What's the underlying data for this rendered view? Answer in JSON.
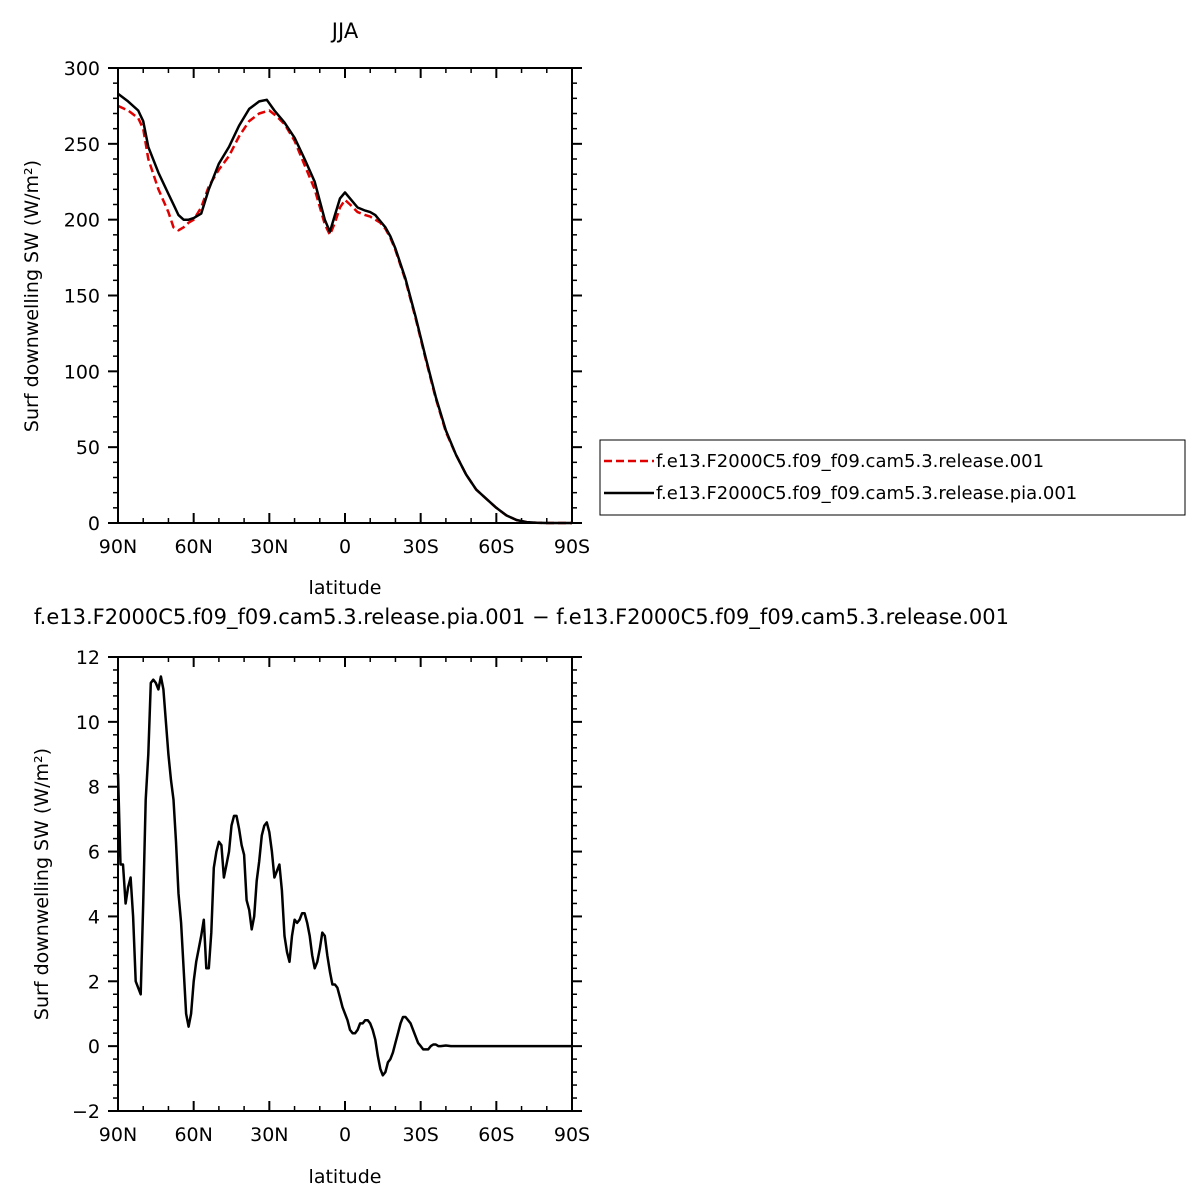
{
  "chart_data": [
    {
      "type": "line",
      "title": "JJA",
      "xlabel": "latitude",
      "ylabel": "Surf downwelling SW (W/m²)",
      "xlim": [
        90,
        -90
      ],
      "ylim": [
        0,
        300
      ],
      "xticks": [
        90,
        60,
        30,
        0,
        -30,
        -60,
        -90
      ],
      "xtick_labels": [
        "90N",
        "60N",
        "30N",
        "0",
        "30S",
        "60S",
        "90S"
      ],
      "yticks": [
        0,
        50,
        100,
        150,
        200,
        250,
        300
      ],
      "ytick_labels": [
        "0",
        "50",
        "100",
        "150",
        "200",
        "250",
        "300"
      ],
      "legend_position": "right",
      "series": [
        {
          "name": "f.e13.F2000C5.f09_f09.cam5.3.release.001",
          "color": "#e00000",
          "dash": "dashed",
          "x": [
            90,
            86,
            82,
            80,
            78,
            74,
            70,
            68,
            66,
            64,
            62,
            60,
            57,
            54,
            50,
            46,
            42,
            38,
            34,
            30,
            27,
            24,
            20,
            16,
            12,
            8,
            6,
            4,
            2,
            0,
            -2,
            -5,
            -8,
            -10,
            -12,
            -14,
            -16,
            -18,
            -20,
            -24,
            -28,
            -32,
            -36,
            -40,
            -44,
            -48,
            -52,
            -56,
            -60,
            -64,
            -68,
            -72,
            -76,
            -80,
            -84,
            -88,
            -90
          ],
          "y": [
            275,
            272,
            267,
            260,
            240,
            220,
            205,
            195,
            193,
            195,
            198,
            200,
            208,
            222,
            233,
            242,
            255,
            265,
            270,
            272,
            268,
            263,
            252,
            236,
            220,
            197,
            190,
            198,
            208,
            213,
            210,
            205,
            203,
            202,
            200,
            198,
            194,
            188,
            180,
            160,
            135,
            108,
            82,
            60,
            45,
            32,
            22,
            16,
            10,
            5,
            2,
            0.6,
            0.1,
            0,
            0,
            0,
            0
          ]
        },
        {
          "name": "f.e13.F2000C5.f09_f09.cam5.3.release.pia.001",
          "color": "#000000",
          "dash": "solid",
          "x": [
            90,
            86,
            82,
            80,
            78,
            74,
            70,
            68,
            66,
            64,
            62,
            60,
            57,
            54,
            50,
            46,
            42,
            38,
            34,
            31,
            28,
            24,
            20,
            16,
            12,
            8,
            6,
            4,
            2,
            0,
            -2,
            -5,
            -8,
            -10,
            -12,
            -14,
            -16,
            -18,
            -20,
            -24,
            -28,
            -32,
            -36,
            -40,
            -44,
            -48,
            -52,
            -56,
            -60,
            -64,
            -68,
            -72,
            -76,
            -80,
            -84,
            -88,
            -90
          ],
          "y": [
            283,
            278,
            272,
            265,
            248,
            231,
            217,
            210,
            203,
            200,
            200,
            201,
            204,
            220,
            237,
            248,
            262,
            273,
            278,
            279,
            272,
            264,
            254,
            240,
            225,
            200,
            192,
            203,
            214,
            218,
            214,
            208,
            206,
            205,
            203,
            199,
            195,
            189,
            181,
            161,
            136,
            109,
            83,
            61,
            45,
            32,
            22,
            16,
            10,
            5,
            2,
            0.6,
            0.1,
            0,
            0,
            0,
            0
          ]
        }
      ]
    },
    {
      "type": "line",
      "title": "f.e13.F2000C5.f09_f09.cam5.3.release.pia.001 − f.e13.F2000C5.f09_f09.cam5.3.release.001",
      "xlabel": "latitude",
      "ylabel": "Surf downwelling SW (W/m²)",
      "xlim": [
        90,
        -90
      ],
      "ylim": [
        -2,
        12
      ],
      "xticks": [
        90,
        60,
        30,
        0,
        -30,
        -60,
        -90
      ],
      "xtick_labels": [
        "90N",
        "60N",
        "30N",
        "0",
        "30S",
        "60S",
        "90S"
      ],
      "yticks": [
        -2,
        0,
        2,
        4,
        6,
        8,
        10,
        12
      ],
      "ytick_labels": [
        "−2",
        "0",
        "2",
        "4",
        "6",
        "8",
        "10",
        "12"
      ],
      "series": [
        {
          "name": "",
          "color": "#000000",
          "dash": "solid",
          "x": [
            90,
            89,
            88,
            87,
            86,
            85,
            84,
            83,
            82,
            81,
            80,
            79,
            78,
            77,
            76,
            75,
            74,
            73,
            72,
            71,
            70,
            69,
            68,
            67,
            66,
            65,
            64,
            63,
            62,
            61,
            60,
            59,
            58,
            57,
            56,
            55,
            54,
            53,
            52,
            51,
            50,
            49,
            48,
            47,
            46,
            45,
            44,
            43,
            42,
            41,
            40,
            39,
            38,
            37,
            36,
            35,
            34,
            33,
            32,
            31,
            30,
            29,
            28,
            27,
            26,
            25,
            24,
            23,
            22,
            21,
            20,
            19,
            18,
            17,
            16,
            15,
            14,
            13,
            12,
            11,
            10,
            9,
            8,
            7,
            6,
            5,
            4,
            3,
            2,
            1,
            0,
            -1,
            -2,
            -3,
            -4,
            -5,
            -6,
            -7,
            -8,
            -9,
            -10,
            -11,
            -12,
            -13,
            -14,
            -15,
            -16,
            -17,
            -18,
            -19,
            -20,
            -21,
            -22,
            -23,
            -24,
            -25,
            -26,
            -27,
            -28,
            -29,
            -30,
            -31,
            -32,
            -33,
            -34,
            -35,
            -36,
            -37,
            -38,
            -40,
            -42,
            -44,
            -46,
            -48,
            -50,
            -52,
            -54,
            -56,
            -58,
            -60,
            -62,
            -64,
            -66,
            -68,
            -70,
            -72,
            -76,
            -80,
            -85,
            -90
          ],
          "y": [
            8.4,
            5.6,
            5.6,
            4.4,
            4.9,
            5.2,
            4.0,
            2.0,
            1.8,
            1.6,
            4.4,
            7.6,
            9.0,
            11.2,
            11.3,
            11.2,
            11.0,
            11.4,
            11.0,
            10.0,
            9.0,
            8.2,
            7.6,
            6.3,
            4.7,
            3.8,
            2.4,
            1.0,
            0.6,
            1.0,
            2.0,
            2.6,
            3.0,
            3.4,
            3.9,
            2.4,
            2.4,
            3.5,
            5.5,
            6.0,
            6.3,
            6.2,
            5.2,
            5.6,
            6.0,
            6.8,
            7.1,
            7.1,
            6.7,
            6.2,
            5.9,
            4.5,
            4.2,
            3.6,
            4.0,
            5.1,
            5.7,
            6.5,
            6.8,
            6.9,
            6.6,
            6.0,
            5.2,
            5.4,
            5.6,
            4.8,
            3.4,
            2.9,
            2.6,
            3.4,
            3.9,
            3.8,
            3.9,
            4.1,
            4.1,
            3.8,
            3.4,
            2.8,
            2.4,
            2.6,
            3.0,
            3.5,
            3.4,
            2.8,
            2.3,
            1.9,
            1.9,
            1.8,
            1.5,
            1.2,
            1.0,
            0.8,
            0.5,
            0.4,
            0.4,
            0.5,
            0.7,
            0.7,
            0.8,
            0.8,
            0.7,
            0.5,
            0.2,
            -0.3,
            -0.7,
            -0.9,
            -0.8,
            -0.5,
            -0.4,
            -0.2,
            0.1,
            0.4,
            0.7,
            0.9,
            0.9,
            0.8,
            0.7,
            0.5,
            0.3,
            0.1,
            0.0,
            -0.1,
            -0.1,
            -0.1,
            0.0,
            0.05,
            0.05,
            0.0,
            0.0,
            0.02,
            0.0,
            0.0,
            0.0,
            0.0,
            0.0,
            0.0,
            0.0,
            0.0,
            0.0,
            0.0,
            0.0,
            0.0,
            0.0,
            0.0,
            0.0,
            0.0,
            0.0,
            0.0,
            0.0,
            0.0
          ]
        }
      ]
    }
  ]
}
